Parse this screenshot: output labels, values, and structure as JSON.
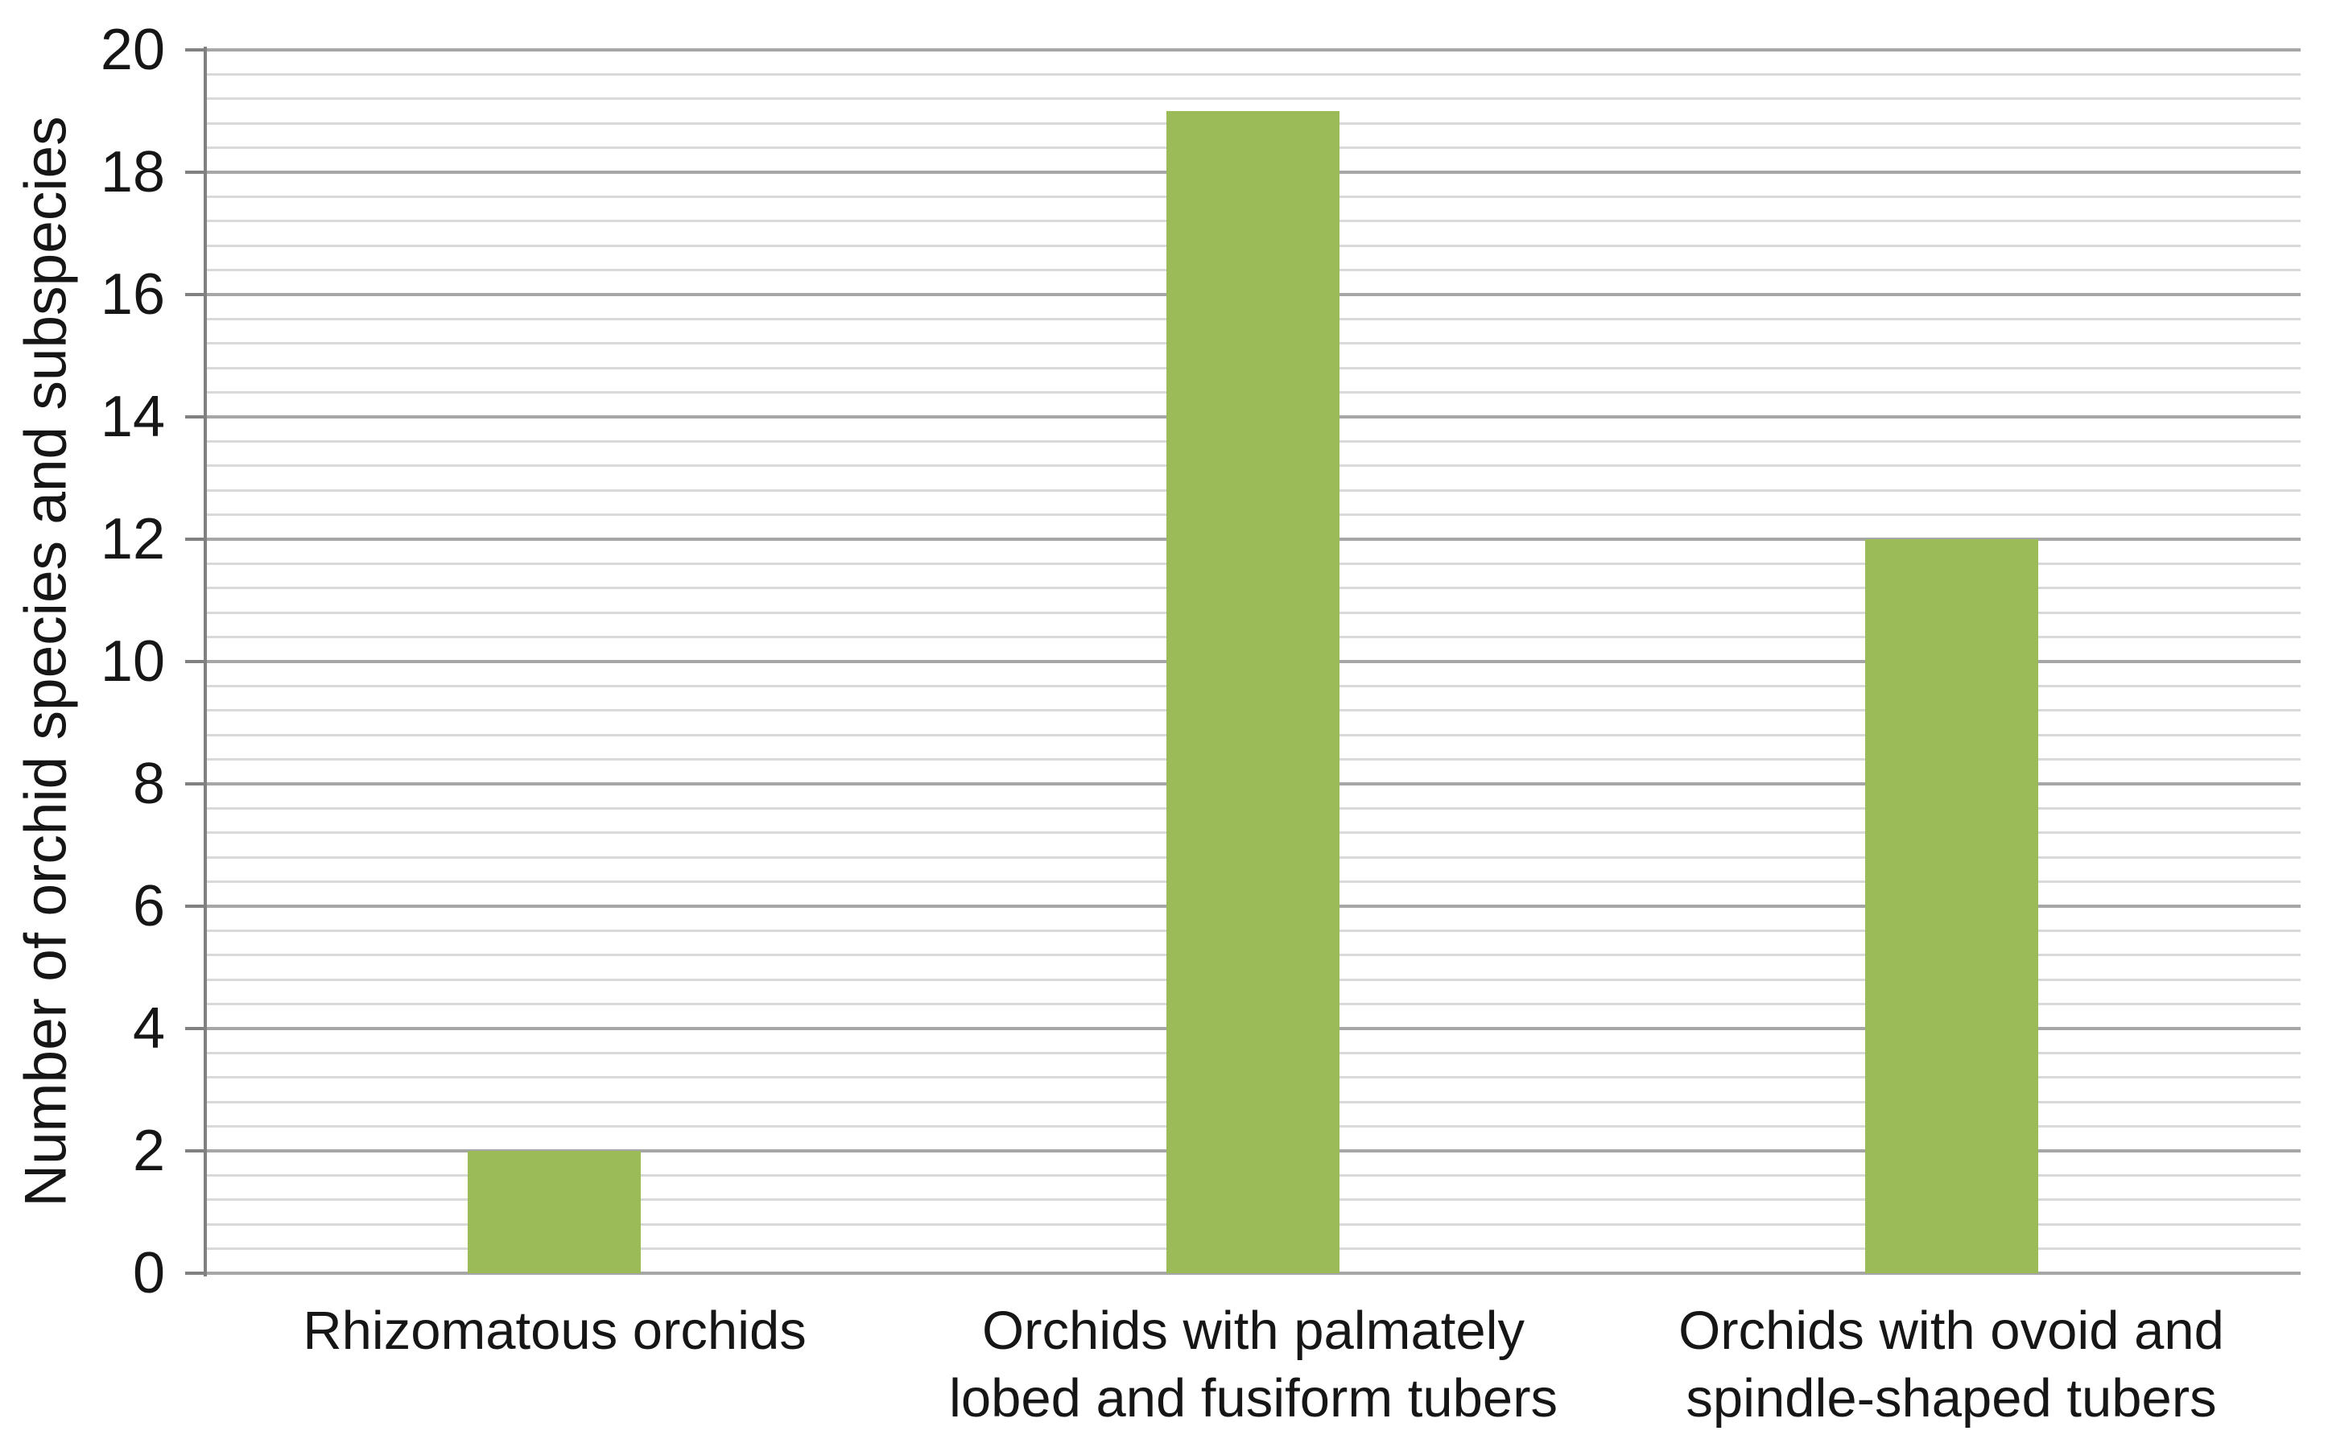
{
  "chart_data": {
    "type": "bar",
    "title": "",
    "ylabel": "Number of orchid species and subspecies",
    "xlabel": "",
    "categories": [
      "Rhizomatous orchids",
      "Orchids with palmately\nlobed and fusiform tubers",
      "Orchids with ovoid and\nspindle-shaped tubers"
    ],
    "values": [
      2,
      19,
      12
    ],
    "ylim": [
      0,
      20
    ],
    "yticks": [
      0,
      2,
      4,
      6,
      8,
      10,
      12,
      14,
      16,
      18,
      20
    ],
    "ytick_major_interval": 2,
    "ytick_minor_interval": 0.4,
    "grid": "horizontal major and minor gridlines on, vertical off",
    "legend": "none",
    "colors": {
      "bar": "#9ABB57",
      "major_gridline": "#A6A6A6",
      "minor_gridline": "#D9D9D9",
      "axis_line": "#808080",
      "text": "#161616",
      "background": "#FFFFFF"
    }
  }
}
